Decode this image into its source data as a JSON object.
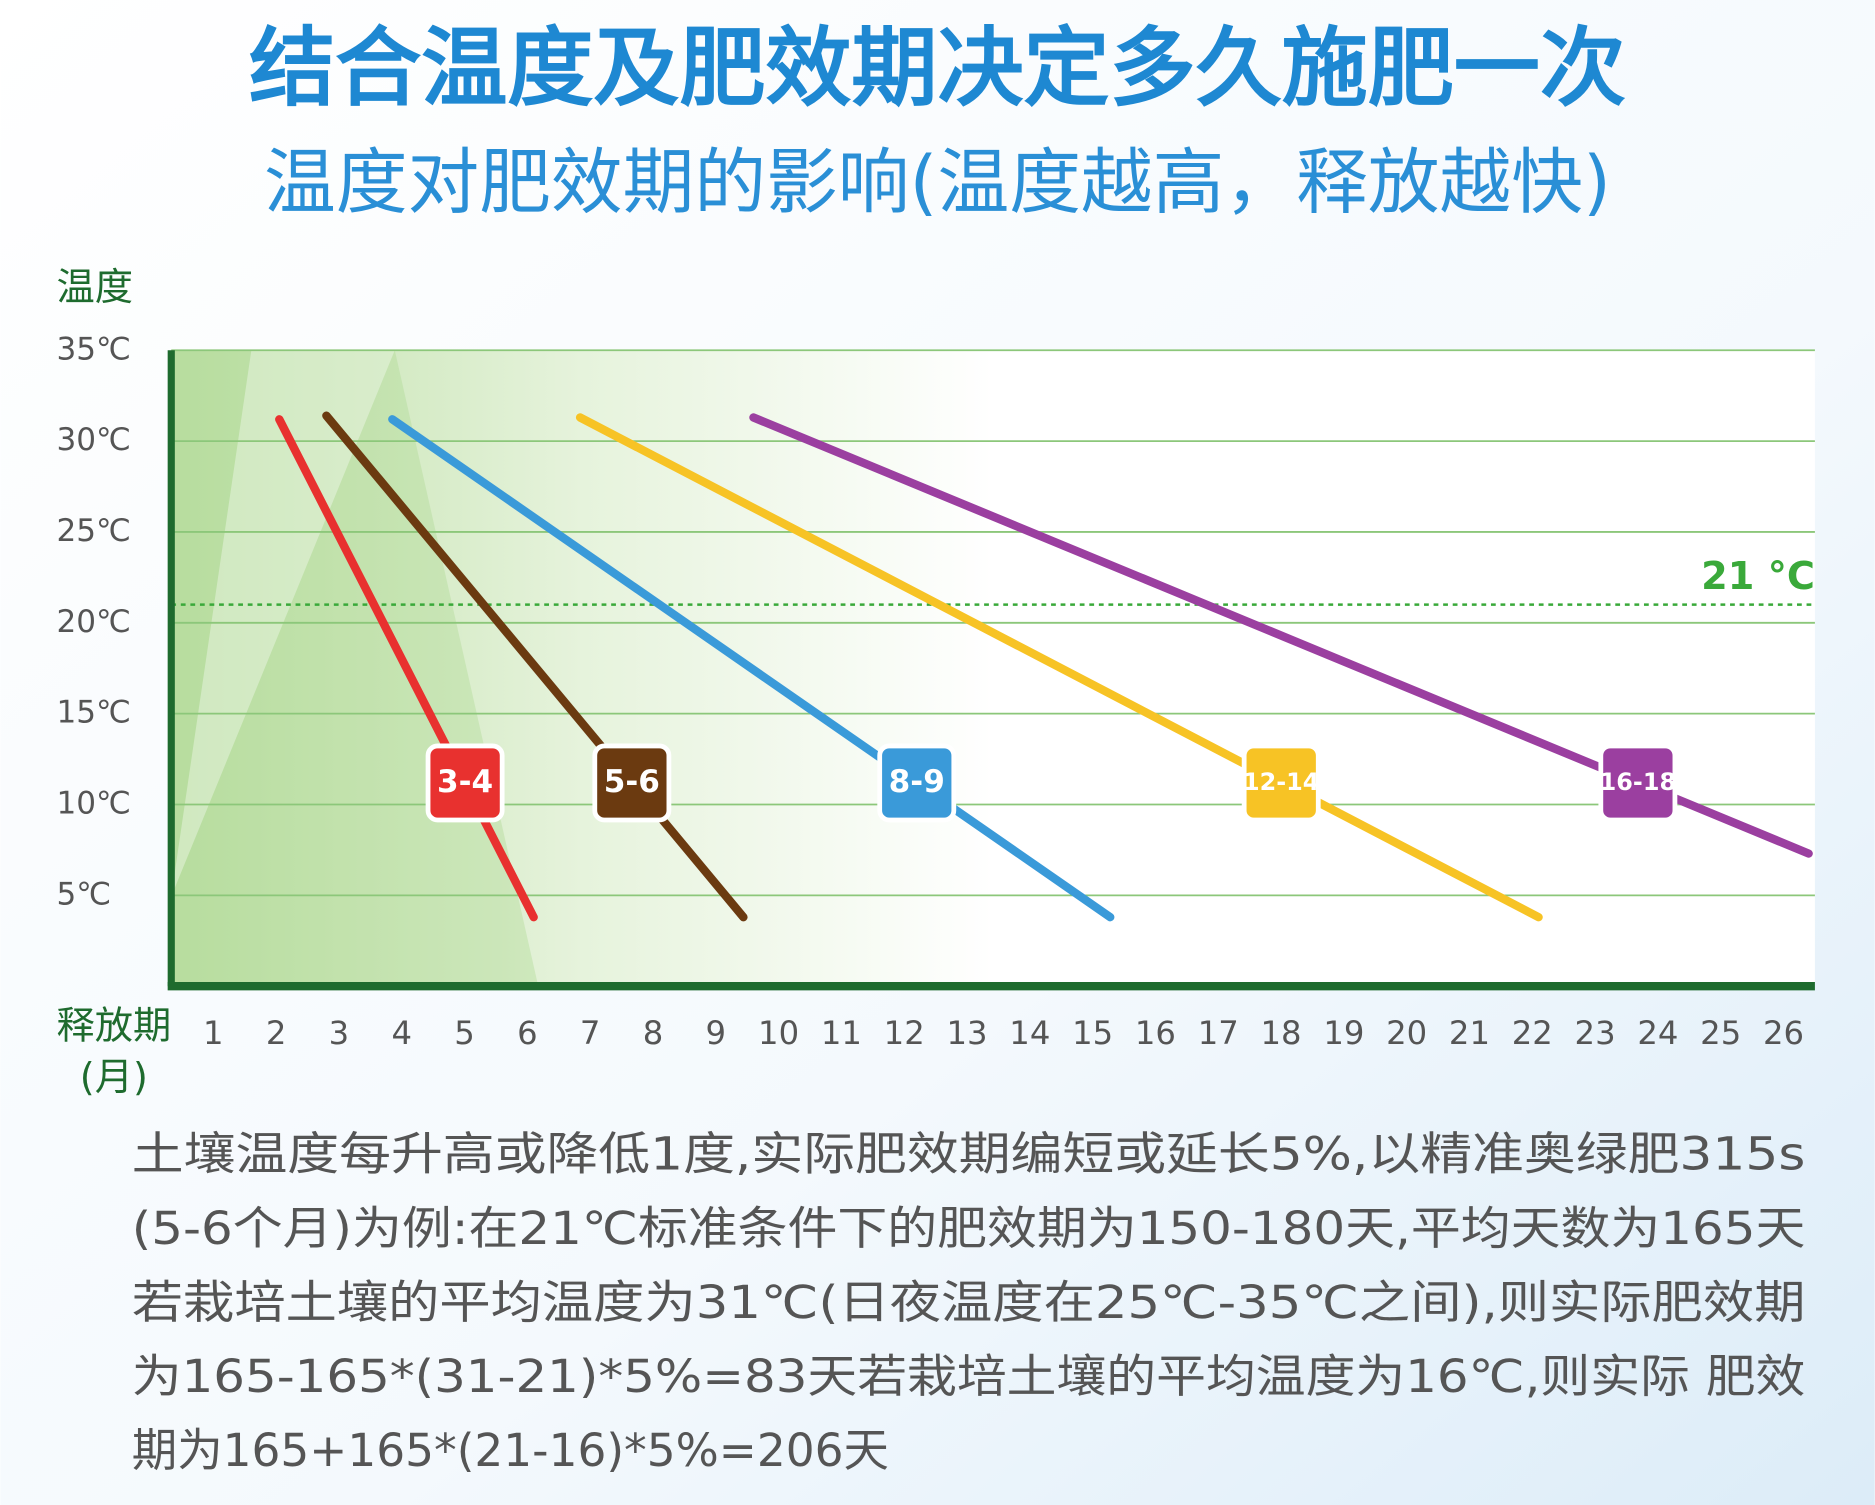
{
  "chart_data": {
    "type": "line",
    "title": "结合温度及肥效期决定多久施肥一次",
    "subtitle": "温度对肥效期的影响(温度越高，释放越快)",
    "ylabel": "温度",
    "xlabel": "释放期",
    "xlabel_unit": "(月)",
    "xlim": [
      0.33,
      26.5
    ],
    "ylim": [
      0,
      35
    ],
    "xticks": [
      1,
      2,
      3,
      4,
      5,
      6,
      7,
      8,
      9,
      10,
      11,
      12,
      13,
      14,
      15,
      16,
      17,
      18,
      19,
      20,
      21,
      22,
      23,
      24,
      25,
      26
    ],
    "yticks": [
      {
        "value": 5,
        "label": "5℃"
      },
      {
        "value": 10,
        "label": "10℃"
      },
      {
        "value": 15,
        "label": "15℃"
      },
      {
        "value": 20,
        "label": "20℃"
      },
      {
        "value": 25,
        "label": "25℃"
      },
      {
        "value": 30,
        "label": "30℃"
      },
      {
        "value": 35,
        "label": "35℃"
      }
    ],
    "grid": true,
    "series": [
      {
        "name": "3-4",
        "color": "#e8312f",
        "x": [
          2.05,
          6.1
        ],
        "values": [
          31.2,
          3.8
        ]
      },
      {
        "name": "5-6",
        "color": "#6b3a10",
        "x": [
          2.8,
          9.44
        ],
        "values": [
          31.4,
          3.8
        ]
      },
      {
        "name": "8-9",
        "color": "#3a9ad9",
        "x": [
          3.85,
          15.28
        ],
        "values": [
          31.2,
          3.8
        ]
      },
      {
        "name": "12-14",
        "color": "#f7c325",
        "x": [
          6.84,
          22.1
        ],
        "values": [
          31.3,
          3.8
        ]
      },
      {
        "name": "16-18",
        "color": "#9b3fa0",
        "x": [
          9.6,
          26.4
        ],
        "values": [
          31.3,
          7.3
        ]
      }
    ],
    "reference_line": {
      "y": 21,
      "label": "21 °C",
      "color": "#3aa93a"
    },
    "note": [
      "土壤温度每升高或降低1度,实际肥效期编短或延长5%,以精准奥绿肥315s",
      "(5-6个月)为例:在21℃标准条件下的肥效期为150-180天,平均天数为165天",
      "若栽培土壤的平均温度为31℃(日夜温度在25℃-35℃之间),则实际肥效期",
      "为165-165*(31-21)*5%=83天若栽培土壤的平均温度为16℃,则实际 肥效",
      "期为165+165*(21-16)*5%=206天"
    ]
  }
}
